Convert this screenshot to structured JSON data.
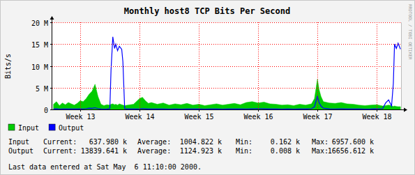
{
  "chart_data": {
    "type": "line",
    "title": "Monthly host8 TCP Bits Per Second",
    "y_label": "Bits/s",
    "watermark": "RRDTOOL / TOBI OETIKER",
    "grid": true,
    "legend": "bottom-left",
    "x": [
      12.55,
      12.6,
      12.65,
      12.7,
      12.75,
      12.8,
      12.85,
      12.9,
      12.95,
      13.0,
      13.05,
      13.1,
      13.15,
      13.2,
      13.25,
      13.3,
      13.35,
      13.4,
      13.45,
      13.5,
      13.52,
      13.55,
      13.58,
      13.6,
      13.63,
      13.66,
      13.7,
      13.72,
      13.75,
      13.8,
      13.9,
      14.0,
      14.05,
      14.1,
      14.15,
      14.2,
      14.3,
      14.4,
      14.5,
      14.6,
      14.7,
      14.8,
      14.9,
      15.0,
      15.1,
      15.2,
      15.3,
      15.4,
      15.5,
      15.6,
      15.7,
      15.8,
      15.9,
      16.0,
      16.1,
      16.2,
      16.3,
      16.4,
      16.5,
      16.6,
      16.7,
      16.8,
      16.9,
      16.95,
      17.0,
      17.03,
      17.06,
      17.1,
      17.2,
      17.3,
      17.4,
      17.5,
      17.6,
      17.7,
      17.8,
      17.9,
      18.0,
      18.1,
      18.15,
      18.2,
      18.25,
      18.28,
      18.3,
      18.33,
      18.36,
      18.4
    ],
    "xlim": [
      12.53,
      18.41
    ],
    "xticks": [
      {
        "value": 13,
        "label": "Week 13"
      },
      {
        "value": 14,
        "label": "Week 14"
      },
      {
        "value": 15,
        "label": "Week 15"
      },
      {
        "value": 16,
        "label": "Week 16"
      },
      {
        "value": 17,
        "label": "Week 17"
      },
      {
        "value": 18,
        "label": "Week 18"
      }
    ],
    "ylim": [
      0,
      20000000
    ],
    "yticks": [
      0,
      {
        "value": 5000000,
        "label": "5 M"
      },
      {
        "value": 10000000,
        "label": "10 M"
      },
      {
        "value": 15000000,
        "label": "15 M"
      },
      {
        "value": 20000000,
        "label": "20 M"
      }
    ],
    "series": [
      {
        "name": "Input",
        "color": "#00cc00",
        "type": "area",
        "values": [
          1200000,
          1800000,
          900000,
          1500000,
          1100000,
          1600000,
          1300000,
          1000000,
          1400000,
          2000000,
          1800000,
          2500000,
          3500000,
          4200000,
          5800000,
          3000000,
          1200000,
          900000,
          1100000,
          1000000,
          1200000,
          1300000,
          1100000,
          1200000,
          1000000,
          1300000,
          1100000,
          1000000,
          900000,
          1000000,
          1200000,
          2500000,
          2800000,
          2000000,
          1400000,
          1600000,
          1200000,
          1500000,
          1000000,
          1300000,
          1100000,
          1400000,
          1000000,
          1200000,
          900000,
          1100000,
          1300000,
          1000000,
          1200000,
          1400000,
          1100000,
          1600000,
          1800000,
          1500000,
          1700000,
          1300000,
          1200000,
          1000000,
          1100000,
          900000,
          1200000,
          1000000,
          1300000,
          2500000,
          6957600,
          4500000,
          3000000,
          1800000,
          1500000,
          1400000,
          1600000,
          1300000,
          1200000,
          1000000,
          900000,
          1000000,
          1100000,
          800000,
          900000,
          1000000,
          900000,
          700000,
          800000,
          700000,
          650000,
          637980
        ]
      },
      {
        "name": "Output",
        "color": "#0000ff",
        "type": "line",
        "values": [
          100000,
          150000,
          80000,
          120000,
          90000,
          100000,
          110000,
          90000,
          100000,
          150000,
          120000,
          200000,
          300000,
          250000,
          400000,
          200000,
          100000,
          80000,
          90000,
          200000,
          9000000,
          16656612,
          14000000,
          15000000,
          13500000,
          14500000,
          13800000,
          11000000,
          200000,
          100000,
          100000,
          150000,
          200000,
          150000,
          100000,
          100000,
          90000,
          100000,
          80000,
          90000,
          80000,
          100000,
          90000,
          100000,
          80000,
          90000,
          100000,
          80000,
          90000,
          100000,
          90000,
          120000,
          150000,
          200000,
          150000,
          100000,
          90000,
          80000,
          90000,
          80000,
          100000,
          90000,
          200000,
          600000,
          3000000,
          1500000,
          800000,
          300000,
          150000,
          120000,
          150000,
          100000,
          100000,
          90000,
          80000,
          100000,
          150000,
          200000,
          1500000,
          2200000,
          800000,
          6000000,
          15000000,
          14000000,
          15200000,
          13839641
        ]
      }
    ],
    "stats": [
      {
        "name": "Input",
        "entries": [
          {
            "label": "Current:",
            "value": "637.980 k"
          },
          {
            "label": "Average:",
            "value": "1004.822 k"
          },
          {
            "label": "Min:",
            "value": "0.162 k"
          },
          {
            "label": "Max:",
            "value": "6957.600 k"
          }
        ]
      },
      {
        "name": "Output",
        "entries": [
          {
            "label": "Current:",
            "value": "13839.641 k"
          },
          {
            "label": "Average:",
            "value": "1124.923 k"
          },
          {
            "label": "Min:",
            "value": "0.008 k"
          },
          {
            "label": "Max:",
            "value": "16656.612 k"
          }
        ]
      }
    ],
    "footer": "Last data entered at Sat May  6 11:10:00 2000."
  }
}
